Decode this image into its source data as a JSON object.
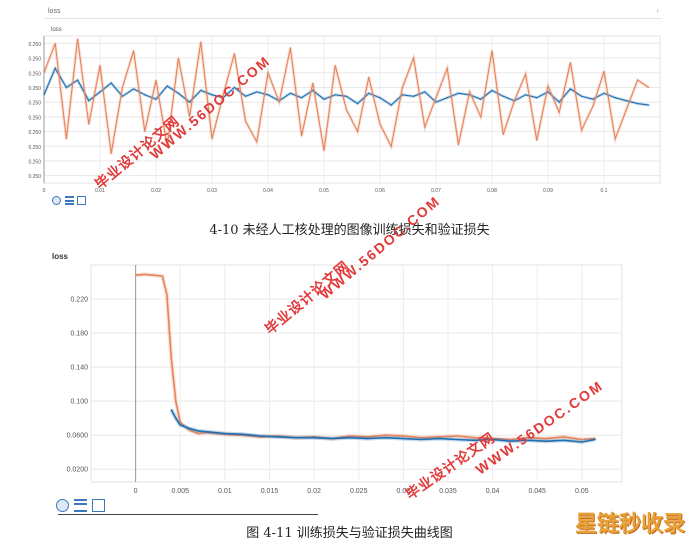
{
  "figure1": {
    "chart_title": "loss",
    "ylabel": "loss",
    "caption": "4-10 未经人工核处理的图像训练损失和验证损失",
    "chart_data": {
      "type": "line",
      "title": "loss",
      "xlabel": "",
      "ylabel": "loss",
      "x_ticks": [
        "0",
        "0.01",
        "0.02",
        "0.03",
        "0.04",
        "0.05",
        "0.06",
        "0.07",
        "0.08",
        "0.09",
        "0.1"
      ],
      "y_ticks": [
        "0.250",
        "0.250",
        "0.250",
        "0.250",
        "0.250",
        "0.250",
        "0.250",
        "0.250",
        "0.250",
        "0.250"
      ],
      "xlim": [
        0,
        0.11
      ],
      "ylim": [
        0,
        10
      ],
      "grid": true,
      "series": [
        {
          "color": "#1f6fb2",
          "x": [
            0,
            0.002,
            0.004,
            0.006,
            0.008,
            0.01,
            0.012,
            0.014,
            0.016,
            0.018,
            0.02,
            0.022,
            0.024,
            0.026,
            0.028,
            0.03,
            0.032,
            0.034,
            0.036,
            0.038,
            0.04,
            0.042,
            0.044,
            0.046,
            0.048,
            0.05,
            0.052,
            0.054,
            0.056,
            0.058,
            0.06,
            0.062,
            0.064,
            0.066,
            0.068,
            0.07,
            0.072,
            0.074,
            0.076,
            0.078,
            0.08,
            0.082,
            0.084,
            0.086,
            0.088,
            0.09,
            0.092,
            0.094,
            0.096,
            0.098,
            0.1,
            0.102,
            0.104,
            0.106,
            0.108
          ],
          "values": [
            6.0,
            7.8,
            6.5,
            7.0,
            5.6,
            6.2,
            6.8,
            5.9,
            6.4,
            6.0,
            5.7,
            6.6,
            6.1,
            5.5,
            6.3,
            6.0,
            5.8,
            6.5,
            5.9,
            6.2,
            6.0,
            5.6,
            6.1,
            5.8,
            6.3,
            5.7,
            6.0,
            5.9,
            5.4,
            6.1,
            5.8,
            5.3,
            6.0,
            5.9,
            6.2,
            5.5,
            5.8,
            6.1,
            6.0,
            5.7,
            6.3,
            5.9,
            5.6,
            6.0,
            5.8,
            6.2,
            5.5,
            6.4,
            5.9,
            5.7,
            6.1,
            5.8,
            5.6,
            5.4,
            5.3
          ]
        },
        {
          "color": "#e8845c",
          "x": [
            0,
            0.002,
            0.004,
            0.006,
            0.008,
            0.01,
            0.012,
            0.014,
            0.016,
            0.018,
            0.02,
            0.022,
            0.024,
            0.026,
            0.028,
            0.03,
            0.032,
            0.034,
            0.036,
            0.038,
            0.04,
            0.042,
            0.044,
            0.046,
            0.048,
            0.05,
            0.052,
            0.054,
            0.056,
            0.058,
            0.06,
            0.062,
            0.064,
            0.066,
            0.068,
            0.07,
            0.072,
            0.074,
            0.076,
            0.078,
            0.08,
            0.082,
            0.084,
            0.086,
            0.088,
            0.09,
            0.092,
            0.094,
            0.096,
            0.098,
            0.1,
            0.102,
            0.104,
            0.106,
            0.108
          ],
          "values": [
            7.5,
            9.5,
            3.0,
            9.8,
            4.0,
            8.0,
            2.0,
            6.5,
            9.0,
            3.5,
            7.0,
            2.5,
            8.5,
            4.5,
            9.6,
            3.0,
            6.0,
            8.8,
            4.2,
            2.8,
            7.5,
            5.5,
            9.2,
            3.2,
            6.8,
            2.2,
            8.0,
            5.0,
            3.5,
            7.2,
            4.0,
            2.5,
            6.5,
            8.5,
            3.8,
            5.8,
            7.8,
            2.6,
            6.2,
            4.5,
            9.0,
            3.3,
            5.6,
            7.4,
            2.9,
            6.6,
            4.8,
            8.2,
            3.6,
            5.2,
            7.6,
            3.0,
            5.0,
            7.0,
            6.5
          ]
        }
      ]
    },
    "toolbar": [
      "fit-icon",
      "list-icon",
      "expand-icon"
    ]
  },
  "figure2": {
    "ylabel": "loss",
    "caption": "图 4-11 训练损失与验证损失曲线图",
    "chart_data": {
      "type": "line",
      "title": "",
      "xlabel": "",
      "ylabel": "loss",
      "x_ticks": [
        "0",
        "0.005",
        "0.01",
        "0.015",
        "0.02",
        "0.025",
        "0.03",
        "0.035",
        "0.04",
        "0.045",
        "0.05"
      ],
      "y_ticks": [
        "0.220",
        "0.180",
        "0.140",
        "0.100",
        "0.0600",
        "0.0200"
      ],
      "y_tick_values": [
        0.22,
        0.18,
        0.14,
        0.1,
        0.06,
        0.02
      ],
      "xlim": [
        -0.005,
        0.0545
      ],
      "ylim": [
        0.005,
        0.26
      ],
      "grid": true,
      "series": [
        {
          "color": "#e8845c",
          "x": [
            0,
            0.001,
            0.002,
            0.003,
            0.0035,
            0.004,
            0.0045,
            0.005,
            0.006,
            0.007,
            0.008,
            0.01,
            0.012,
            0.014,
            0.016,
            0.018,
            0.02,
            0.022,
            0.024,
            0.026,
            0.028,
            0.03,
            0.032,
            0.034,
            0.036,
            0.038,
            0.04,
            0.042,
            0.044,
            0.046,
            0.048,
            0.05,
            0.0515
          ],
          "values": [
            0.248,
            0.249,
            0.248,
            0.247,
            0.225,
            0.15,
            0.1,
            0.075,
            0.066,
            0.062,
            0.063,
            0.061,
            0.06,
            0.058,
            0.059,
            0.057,
            0.058,
            0.056,
            0.059,
            0.058,
            0.06,
            0.059,
            0.057,
            0.058,
            0.059,
            0.057,
            0.056,
            0.055,
            0.057,
            0.056,
            0.058,
            0.055,
            0.056
          ]
        },
        {
          "color": "#1f6fb2",
          "x": [
            0.004,
            0.0045,
            0.005,
            0.006,
            0.007,
            0.008,
            0.01,
            0.012,
            0.014,
            0.016,
            0.018,
            0.02,
            0.022,
            0.024,
            0.026,
            0.028,
            0.03,
            0.032,
            0.034,
            0.036,
            0.038,
            0.04,
            0.042,
            0.044,
            0.046,
            0.048,
            0.05,
            0.0515
          ],
          "values": [
            0.09,
            0.08,
            0.072,
            0.068,
            0.065,
            0.064,
            0.062,
            0.061,
            0.059,
            0.058,
            0.057,
            0.057,
            0.056,
            0.057,
            0.056,
            0.057,
            0.056,
            0.055,
            0.056,
            0.055,
            0.054,
            0.055,
            0.053,
            0.054,
            0.053,
            0.054,
            0.052,
            0.055
          ]
        }
      ]
    },
    "toolbar": [
      "fit-icon",
      "list-icon",
      "expand-icon"
    ]
  },
  "watermarks": {
    "site": "WWW.56DOC.COM",
    "cn": "毕业设计论文网",
    "brand": "星链秒收录"
  }
}
